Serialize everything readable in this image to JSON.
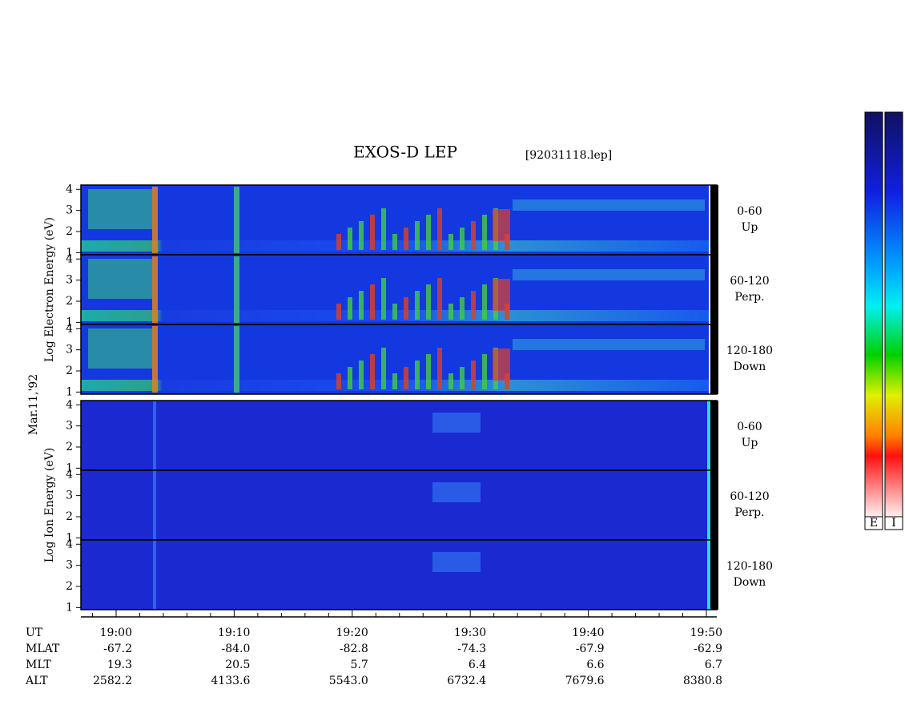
{
  "chart_data": {
    "type": "spectrogram",
    "title": "EXOS-D LEP",
    "subtitle": "[92031118.lep]",
    "date_label": "Mar.11,'92",
    "ylim": [
      0.9,
      4.2
    ],
    "yticks": [
      1,
      2,
      3,
      4
    ],
    "groups": [
      {
        "ylabel": "Log  Electron  Energy  (eV)",
        "panels": [
          {
            "name": "0-60",
            "sub": "Up"
          },
          {
            "name": "60-120",
            "sub": "Perp."
          },
          {
            "name": "120-180",
            "sub": "Down"
          }
        ]
      },
      {
        "ylabel": "Log    Ion    Energy  (eV)",
        "panels": [
          {
            "name": "0-60",
            "sub": "Up"
          },
          {
            "name": "60-120",
            "sub": "Perp."
          },
          {
            "name": "120-180",
            "sub": "Down"
          }
        ]
      }
    ],
    "table": [
      {
        "name": "UT",
        "values": [
          "19:00",
          "19:10",
          "19:20",
          "19:30",
          "19:40",
          "19:50"
        ]
      },
      {
        "name": "MLAT",
        "values": [
          "-67.2",
          "-84.0",
          "-82.8",
          "-74.3",
          "-67.9",
          "-62.9"
        ]
      },
      {
        "name": "MLT",
        "values": [
          "19.3",
          "20.5",
          "5.7",
          "6.4",
          "6.6",
          "6.7"
        ]
      },
      {
        "name": "ALT",
        "values": [
          "2582.2",
          "4133.6",
          "5543.0",
          "6732.4",
          "7679.6",
          "8380.8"
        ]
      }
    ],
    "colorbars": [
      "E",
      "I"
    ]
  }
}
